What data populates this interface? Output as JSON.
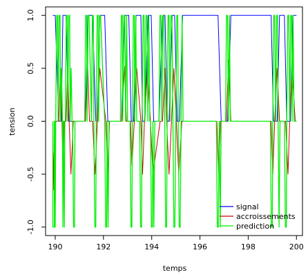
{
  "chart_data": {
    "type": "line",
    "title": "",
    "xlabel": "temps",
    "ylabel": "tension",
    "xlim": [
      189.6,
      200.25
    ],
    "ylim": [
      -1.08,
      1.08
    ],
    "x_ticks": [
      190,
      192,
      194,
      196,
      198,
      200
    ],
    "x_tick_labels": [
      "190",
      "192",
      "194",
      "196",
      "198",
      "200"
    ],
    "y_ticks": [
      -1.0,
      -0.5,
      0.0,
      0.5,
      1.0
    ],
    "y_tick_labels": [
      "-1.0",
      "-0.5",
      "0.0",
      "0.5",
      "1.0"
    ],
    "grid": false,
    "legend_position": "bottom-right",
    "series": [
      {
        "name": "signal",
        "color": "#0000ff",
        "x": [
          189.9,
          190.0,
          190.15,
          190.25,
          190.32,
          190.45,
          190.55,
          190.72,
          190.85,
          191.25,
          191.35,
          191.55,
          191.68,
          191.75,
          191.85,
          192.05,
          192.18,
          192.75,
          192.88,
          193.05,
          193.15,
          193.25,
          193.35,
          193.55,
          193.62,
          193.72,
          193.85,
          193.98,
          194.08,
          194.3,
          194.45,
          194.55,
          194.65,
          194.72,
          194.85,
          194.95,
          195.05,
          195.15,
          195.28,
          196.75,
          196.88,
          197.15,
          197.28,
          198.95,
          199.05,
          199.2,
          199.3,
          199.5,
          199.6,
          199.75,
          199.85,
          200.0
        ],
        "y": [
          1.0,
          1.0,
          0.0,
          0.0,
          1.0,
          1.0,
          0.0,
          0.0,
          0.0,
          0.0,
          1.0,
          1.0,
          0.0,
          0.0,
          1.0,
          1.0,
          0.0,
          0.0,
          1.0,
          1.0,
          0.0,
          0.0,
          1.0,
          1.0,
          0.0,
          0.0,
          1.0,
          1.0,
          0.0,
          0.0,
          1.0,
          1.0,
          0.0,
          0.0,
          1.0,
          1.0,
          0.0,
          0.0,
          1.0,
          1.0,
          0.0,
          0.0,
          1.0,
          1.0,
          0.0,
          0.0,
          1.0,
          1.0,
          0.0,
          0.0,
          1.0,
          1.0
        ]
      },
      {
        "name": "accroissements",
        "color": "#cc0000",
        "x": [
          189.9,
          189.92,
          189.95,
          189.98,
          190.0,
          190.05,
          190.1,
          190.15,
          190.22,
          190.28,
          190.32,
          190.38,
          190.45,
          190.52,
          190.58,
          190.65,
          190.75,
          190.85,
          191.25,
          191.3,
          191.35,
          191.42,
          191.5,
          191.55,
          191.65,
          191.75,
          191.85,
          192.1,
          192.18,
          192.25,
          192.75,
          192.82,
          192.88,
          192.95,
          193.05,
          193.12,
          193.18,
          193.28,
          193.38,
          193.55,
          193.62,
          193.7,
          193.82,
          193.95,
          194.05,
          194.35,
          194.45,
          194.55,
          194.62,
          194.72,
          194.82,
          194.92,
          195.02,
          195.12,
          195.25,
          196.7,
          196.78,
          196.85,
          196.95,
          197.1,
          197.18,
          197.28,
          197.4,
          198.95,
          199.02,
          199.1,
          199.2,
          199.3,
          199.55,
          199.65,
          199.72,
          199.82,
          199.95,
          200.0
        ],
        "y": [
          0.0,
          -0.65,
          -0.3,
          -0.75,
          0.0,
          0.0,
          0.0,
          0.0,
          0.5,
          0.0,
          -0.5,
          0.0,
          0.0,
          0.5,
          0.0,
          -0.5,
          0.0,
          0.0,
          0.0,
          0.3,
          0.5,
          0.0,
          0.0,
          0.0,
          -0.5,
          0.0,
          0.5,
          0.0,
          -0.5,
          0.0,
          0.0,
          0.3,
          0.52,
          0.0,
          0.0,
          0.0,
          -0.42,
          0.0,
          0.5,
          0.0,
          -0.5,
          0.0,
          0.5,
          0.0,
          -0.5,
          0.0,
          0.0,
          0.5,
          0.0,
          -0.5,
          0.0,
          0.5,
          0.0,
          -0.5,
          0.0,
          0.0,
          -0.5,
          0.0,
          0.0,
          0.0,
          0.58,
          0.0,
          0.0,
          0.0,
          -0.5,
          0.0,
          0.5,
          0.0,
          0.0,
          -0.5,
          0.0,
          0.5,
          0.0,
          0.0
        ]
      },
      {
        "name": "prediction",
        "color": "#00ee00",
        "x": [
          189.9,
          189.9,
          189.96,
          189.96,
          190.0,
          190.0,
          190.02,
          190.06,
          190.1,
          190.12,
          190.16,
          190.2,
          190.22,
          190.26,
          190.3,
          190.32,
          190.34,
          190.38,
          190.4,
          190.42,
          190.46,
          190.5,
          190.52,
          190.56,
          190.6,
          190.62,
          190.66,
          190.7,
          190.72,
          190.76,
          190.8,
          190.82,
          190.86,
          190.9,
          191.22,
          191.26,
          191.3,
          191.32,
          191.36,
          191.4,
          191.5,
          191.54,
          191.58,
          191.6,
          191.64,
          191.68,
          191.7,
          191.74,
          191.78,
          191.8,
          191.84,
          191.88,
          192.05,
          192.09,
          192.13,
          192.15,
          192.19,
          192.23,
          192.7,
          192.74,
          192.78,
          192.8,
          192.84,
          192.88,
          192.92,
          192.96,
          193.0,
          193.1,
          193.14,
          193.18,
          193.2,
          193.24,
          193.28,
          193.3,
          193.34,
          193.38,
          193.5,
          193.54,
          193.58,
          193.6,
          193.64,
          193.68,
          193.72,
          193.76,
          193.8,
          193.84,
          193.88,
          193.92,
          193.95,
          193.99,
          194.03,
          194.05,
          194.09,
          194.13,
          194.3,
          194.34,
          194.38,
          194.42,
          194.46,
          194.5,
          194.54,
          194.58,
          194.62,
          194.64,
          194.68,
          194.72,
          194.76,
          194.8,
          194.84,
          194.88,
          194.92,
          194.96,
          195.0,
          195.04,
          195.08,
          195.1,
          195.14,
          195.18,
          195.22,
          195.26,
          195.3,
          196.68,
          196.72,
          196.76,
          196.8,
          196.84,
          196.88,
          197.06,
          197.1,
          197.14,
          197.18,
          197.22,
          197.26,
          198.92,
          198.96,
          199.0,
          199.02,
          199.06,
          199.1,
          199.14,
          199.18,
          199.22,
          199.24,
          199.28,
          199.32,
          199.5,
          199.54,
          199.58,
          199.6,
          199.64,
          199.68,
          199.72,
          199.76,
          199.8,
          199.82,
          199.86,
          199.9,
          200.0
        ],
        "y": [
          0.0,
          -1.0,
          -1.0,
          0.0,
          0.0,
          -1.0,
          0.0,
          1.0,
          1.0,
          0.0,
          1.0,
          1.0,
          0.0,
          0.5,
          0.0,
          -1.0,
          0.0,
          -1.0,
          0.0,
          0.0,
          1.0,
          1.0,
          0.0,
          1.0,
          1.0,
          0.0,
          0.5,
          0.0,
          0.0,
          -1.0,
          -1.0,
          0.0,
          0.0,
          0.0,
          0.0,
          1.0,
          1.0,
          0.0,
          1.0,
          1.0,
          0.0,
          1.0,
          1.0,
          0.0,
          -1.0,
          -1.0,
          0.0,
          1.0,
          1.0,
          0.0,
          1.0,
          1.0,
          0.0,
          -1.0,
          -1.0,
          0.0,
          -1.0,
          0.0,
          0.0,
          1.0,
          1.0,
          0.0,
          1.0,
          1.0,
          0.0,
          1.0,
          0.0,
          0.0,
          -1.0,
          -1.0,
          0.0,
          1.0,
          1.0,
          0.0,
          1.0,
          0.0,
          0.0,
          -1.0,
          -1.0,
          0.0,
          1.0,
          1.0,
          0.0,
          1.0,
          1.0,
          0.0,
          1.0,
          0.0,
          0.0,
          -1.0,
          -1.0,
          0.0,
          -1.0,
          0.0,
          0.0,
          1.0,
          1.0,
          0.0,
          1.0,
          1.0,
          0.0,
          -1.0,
          -1.0,
          0.0,
          1.0,
          1.0,
          0.0,
          1.0,
          1.0,
          0.0,
          -1.0,
          -1.0,
          0.0,
          1.0,
          1.0,
          0.0,
          -1.0,
          -1.0,
          0.0,
          1.0,
          0.0,
          0.0,
          -1.0,
          -1.0,
          0.0,
          -1.0,
          0.0,
          0.0,
          1.0,
          1.0,
          0.0,
          1.0,
          0.0,
          0.0,
          -1.0,
          -1.0,
          0.0,
          1.0,
          1.0,
          0.0,
          1.0,
          1.0,
          0.0,
          -1.0,
          0.0,
          0.0,
          -1.0,
          -1.0,
          0.0,
          1.0,
          1.0,
          0.0,
          1.0,
          1.0,
          0.0,
          1.0,
          0.0,
          0.0
        ]
      }
    ]
  }
}
